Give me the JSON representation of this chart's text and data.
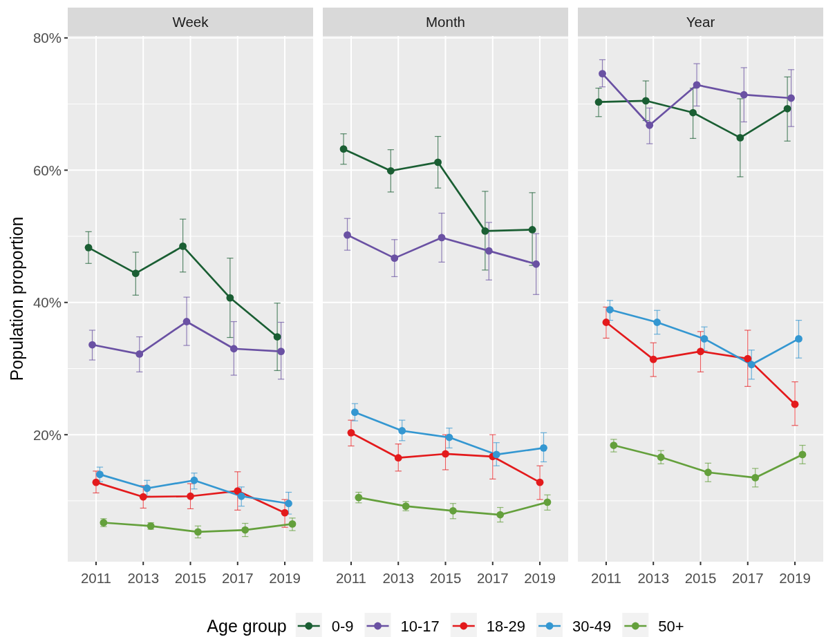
{
  "chart_data": [
    {
      "type": "line",
      "title": "Week",
      "ylabel": "Population proportion",
      "legend_title": "Age group",
      "legend": "bottom",
      "marker": "circle",
      "grid": true,
      "categories": [
        "2011",
        "2013",
        "2015",
        "2017",
        "2019"
      ],
      "ylim": [
        0.8,
        80.3
      ],
      "yticks": [
        {
          "value": 20,
          "label": "20%"
        },
        {
          "value": 40,
          "label": "40%"
        },
        {
          "value": 60,
          "label": "60%"
        },
        {
          "value": 80,
          "label": "80%"
        }
      ],
      "series": [
        {
          "name": "0-9",
          "color": "#1a5e33",
          "values": [
            48.3,
            44.4,
            48.5,
            40.7,
            34.8
          ],
          "errors": [
            [
              45.9,
              50.7
            ],
            [
              41.1,
              47.6
            ],
            [
              44.6,
              52.6
            ],
            [
              34.7,
              46.7
            ],
            [
              29.7,
              39.9
            ]
          ]
        },
        {
          "name": "10-17",
          "color": "#6a51a3",
          "values": [
            33.6,
            32.2,
            37.1,
            33.0,
            32.6
          ],
          "errors": [
            [
              31.3,
              35.8
            ],
            [
              29.5,
              34.8
            ],
            [
              33.5,
              40.8
            ],
            [
              29.0,
              37.1
            ],
            [
              28.4,
              37.0
            ]
          ]
        },
        {
          "name": "18-29",
          "color": "#e31a1c",
          "values": [
            12.8,
            10.6,
            10.7,
            11.5,
            8.2
          ],
          "errors": [
            [
              11.2,
              14.5
            ],
            [
              8.9,
              12.3
            ],
            [
              8.8,
              12.6
            ],
            [
              8.6,
              14.4
            ],
            [
              6.0,
              10.2
            ]
          ]
        },
        {
          "name": "30-49",
          "color": "#3497d1",
          "values": [
            14.0,
            11.9,
            13.1,
            10.7,
            9.6
          ],
          "errors": [
            [
              12.9,
              15.1
            ],
            [
              10.7,
              13.1
            ],
            [
              11.8,
              14.2
            ],
            [
              9.2,
              12.1
            ],
            [
              8.0,
              11.3
            ]
          ]
        },
        {
          "name": "50+",
          "color": "#64a03c",
          "values": [
            6.7,
            6.2,
            5.3,
            5.6,
            6.5
          ],
          "errors": [
            [
              6.1,
              7.3
            ],
            [
              5.7,
              6.7
            ],
            [
              4.4,
              6.2
            ],
            [
              4.6,
              6.6
            ],
            [
              5.5,
              7.4
            ]
          ]
        }
      ]
    },
    {
      "type": "line",
      "title": "Month",
      "marker": "circle",
      "grid": true,
      "tick_labels": "x",
      "categories": [
        "2011",
        "2013",
        "2015",
        "2017",
        "2019"
      ],
      "ylim": [
        0.8,
        80.3
      ],
      "yticks": [
        20,
        40,
        60,
        80
      ],
      "series": [
        {
          "color": "#1a5e33",
          "values": [
            63.2,
            59.9,
            61.2,
            50.8,
            51.0
          ],
          "errors": [
            [
              60.9,
              65.5
            ],
            [
              56.7,
              63.1
            ],
            [
              57.3,
              65.1
            ],
            [
              44.9,
              56.8
            ],
            [
              45.6,
              56.6
            ]
          ]
        },
        {
          "color": "#6a51a3",
          "values": [
            50.2,
            46.7,
            49.8,
            47.8,
            45.8
          ],
          "errors": [
            [
              47.9,
              52.7
            ],
            [
              43.9,
              49.5
            ],
            [
              46.1,
              53.5
            ],
            [
              43.4,
              52.1
            ],
            [
              41.2,
              50.4
            ]
          ]
        },
        {
          "color": "#e31a1c",
          "values": [
            20.3,
            16.5,
            17.1,
            16.7,
            12.8
          ],
          "errors": [
            [
              18.3,
              22.2
            ],
            [
              14.5,
              18.6
            ],
            [
              14.7,
              20.0
            ],
            [
              13.3,
              20.0
            ],
            [
              10.2,
              15.3
            ]
          ]
        },
        {
          "color": "#3497d1",
          "values": [
            23.4,
            20.6,
            19.6,
            17.0,
            18.0
          ],
          "errors": [
            [
              22.1,
              24.7
            ],
            [
              19.1,
              22.2
            ],
            [
              18.0,
              21.0
            ],
            [
              15.3,
              18.8
            ],
            [
              15.9,
              20.3
            ]
          ]
        },
        {
          "color": "#64a03c",
          "values": [
            10.5,
            9.2,
            8.5,
            7.9,
            9.8
          ],
          "errors": [
            [
              9.7,
              11.3
            ],
            [
              8.5,
              9.9
            ],
            [
              7.3,
              9.6
            ],
            [
              6.8,
              9.0
            ],
            [
              8.6,
              10.9
            ]
          ]
        }
      ]
    },
    {
      "type": "line",
      "title": "Year",
      "marker": "circle",
      "grid": true,
      "tick_labels": "x",
      "categories": [
        "2011",
        "2013",
        "2015",
        "2017",
        "2019"
      ],
      "ylim": [
        0.8,
        80.3
      ],
      "yticks": [
        20,
        40,
        60,
        80
      ],
      "series": [
        {
          "color": "#1a5e33",
          "values": [
            70.3,
            70.5,
            68.7,
            64.9,
            69.3
          ],
          "errors": [
            [
              68.1,
              72.4
            ],
            [
              67.5,
              73.5
            ],
            [
              64.8,
              72.4
            ],
            [
              59.0,
              70.8
            ],
            [
              64.4,
              74.1
            ]
          ]
        },
        {
          "color": "#6a51a3",
          "values": [
            74.6,
            66.8,
            72.9,
            71.4,
            70.9
          ],
          "errors": [
            [
              72.6,
              76.7
            ],
            [
              64.0,
              69.4
            ],
            [
              69.7,
              76.1
            ],
            [
              67.3,
              75.5
            ],
            [
              66.6,
              75.2
            ]
          ]
        },
        {
          "color": "#e31a1c",
          "values": [
            37.0,
            31.4,
            32.6,
            31.5,
            24.6
          ],
          "errors": [
            [
              34.6,
              39.3
            ],
            [
              28.8,
              33.9
            ],
            [
              29.5,
              35.6
            ],
            [
              27.3,
              35.8
            ],
            [
              21.4,
              28.0
            ]
          ]
        },
        {
          "color": "#3497d1",
          "values": [
            38.9,
            37.0,
            34.5,
            30.6,
            34.5
          ],
          "errors": [
            [
              37.3,
              40.3
            ],
            [
              35.2,
              38.8
            ],
            [
              32.7,
              36.3
            ],
            [
              28.4,
              32.8
            ],
            [
              31.6,
              37.3
            ]
          ]
        },
        {
          "color": "#64a03c",
          "values": [
            18.4,
            16.6,
            14.3,
            13.5,
            17.0
          ],
          "errors": [
            [
              17.4,
              19.3
            ],
            [
              15.6,
              17.6
            ],
            [
              12.9,
              15.7
            ],
            [
              12.1,
              14.9
            ],
            [
              15.6,
              18.4
            ]
          ]
        }
      ]
    }
  ]
}
